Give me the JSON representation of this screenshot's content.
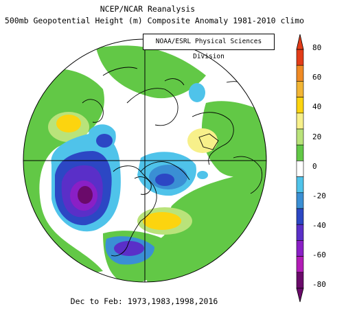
{
  "title_line1": "NCEP/NCAR Reanalysis",
  "title_line2": "500mb Geopotential Height (m) Composite Anomaly 1981-2010 climo",
  "credit": "NOAA/ESRL Physical Sciences Division",
  "footer": "Dec to Feb: 1973,1983,1998,2016",
  "colorbar": {
    "ticks": [
      "80",
      "60",
      "40",
      "20",
      "0",
      "-20",
      "-40",
      "-60",
      "-80"
    ],
    "bins": [
      {
        "range": "70 to 80",
        "color": "#e23c18"
      },
      {
        "range": "60 to 70",
        "color": "#f08a24"
      },
      {
        "range": "50 to 60",
        "color": "#f2b534"
      },
      {
        "range": "40 to 50",
        "color": "#fcd40f"
      },
      {
        "range": "30 to 40",
        "color": "#f7f08a"
      },
      {
        "range": "20 to 30",
        "color": "#b9e37a"
      },
      {
        "range": "10 to 20",
        "color": "#62c846"
      },
      {
        "range": "-10 to 10",
        "color": "#ffffff"
      },
      {
        "range": "-20 to -10",
        "color": "#4fc3ea"
      },
      {
        "range": "-30 to -20",
        "color": "#3a8fd4"
      },
      {
        "range": "-40 to -30",
        "color": "#2c47c4"
      },
      {
        "range": "-50 to -40",
        "color": "#5a2fc8"
      },
      {
        "range": "-60 to -50",
        "color": "#8a1fc6"
      },
      {
        "range": "-70 to -60",
        "color": "#b21cb6"
      },
      {
        "range": "-80 to -70",
        "color": "#6a0a6a"
      }
    ]
  }
}
